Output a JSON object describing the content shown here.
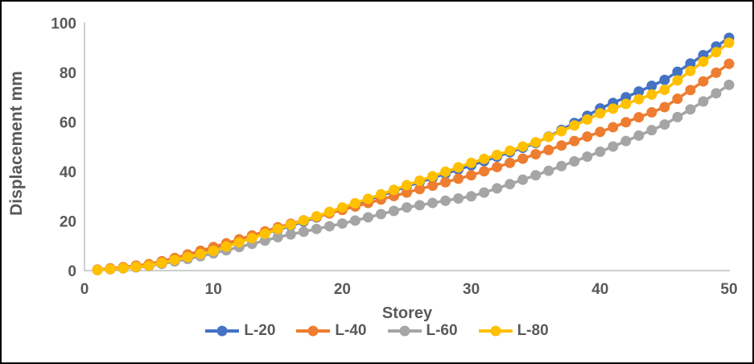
{
  "chart_data": {
    "type": "line",
    "title": "",
    "xlabel": "Storey",
    "ylabel": "Displacement mm",
    "xlim": [
      0,
      50
    ],
    "ylim": [
      0,
      100
    ],
    "x_ticks": [
      0,
      10,
      20,
      30,
      40,
      50
    ],
    "y_ticks": [
      0,
      20,
      40,
      60,
      80,
      100
    ],
    "grid": false,
    "legend_position": "bottom",
    "axis_color": "#BFBFBF",
    "text_color": "#595959",
    "frame_border_color": "#000000",
    "x": [
      1,
      2,
      3,
      4,
      5,
      6,
      7,
      8,
      9,
      10,
      11,
      12,
      13,
      14,
      15,
      16,
      17,
      18,
      19,
      20,
      21,
      22,
      23,
      24,
      25,
      26,
      27,
      28,
      29,
      30,
      31,
      32,
      33,
      34,
      35,
      36,
      37,
      38,
      39,
      40,
      41,
      42,
      43,
      44,
      45,
      46,
      47,
      48,
      49,
      50
    ],
    "series": [
      {
        "name": "L-20",
        "color": "#4472C4",
        "values": [
          0.3,
          0.7,
          1.2,
          1.7,
          2.3,
          3.5,
          4.8,
          6.1,
          7.5,
          9.0,
          10.4,
          11.9,
          13.4,
          14.9,
          16.5,
          18.1,
          19.8,
          21.5,
          23.2,
          25.0,
          26.7,
          28.5,
          30.3,
          32.1,
          34.0,
          35.7,
          37.4,
          39.1,
          40.8,
          42.5,
          44.2,
          46.0,
          47.8,
          49.6,
          51.5,
          54.1,
          56.8,
          59.6,
          62.5,
          65.5,
          67.7,
          70.0,
          72.3,
          74.6,
          77.0,
          80.3,
          83.6,
          87.0,
          90.5,
          94.0
        ]
      },
      {
        "name": "L-40",
        "color": "#ED7D31",
        "values": [
          0.4,
          0.9,
          1.4,
          2.0,
          2.6,
          3.8,
          5.1,
          6.5,
          8.0,
          9.5,
          11.0,
          12.6,
          14.2,
          15.8,
          17.5,
          18.9,
          20.3,
          21.7,
          23.1,
          24.5,
          25.9,
          27.3,
          28.7,
          30.1,
          31.5,
          32.9,
          34.3,
          35.7,
          37.1,
          38.5,
          40.1,
          41.8,
          43.5,
          45.2,
          47.0,
          48.7,
          50.5,
          52.3,
          54.1,
          56.0,
          57.9,
          59.9,
          61.9,
          63.9,
          66.0,
          69.4,
          72.9,
          76.4,
          79.9,
          83.5
        ]
      },
      {
        "name": "L-60",
        "color": "#A5A5A5",
        "values": [
          0.2,
          0.5,
          0.9,
          1.3,
          1.8,
          2.7,
          3.7,
          4.7,
          5.8,
          7.0,
          8.2,
          9.5,
          10.8,
          12.1,
          13.5,
          14.6,
          15.7,
          16.8,
          17.9,
          19.0,
          20.2,
          21.5,
          22.8,
          24.1,
          25.5,
          26.4,
          27.3,
          28.2,
          29.1,
          30.0,
          31.5,
          33.2,
          34.9,
          36.7,
          38.5,
          40.3,
          42.2,
          44.1,
          46.0,
          48.0,
          50.1,
          52.3,
          54.5,
          56.7,
          59.0,
          62.0,
          65.1,
          68.3,
          71.6,
          75.0
        ]
      },
      {
        "name": "L-80",
        "color": "#FFC000",
        "values": [
          0.2,
          0.6,
          1.0,
          1.5,
          2.0,
          3.1,
          4.3,
          5.5,
          6.7,
          8.0,
          9.7,
          11.4,
          13.1,
          14.9,
          16.8,
          18.5,
          20.2,
          21.9,
          23.7,
          25.5,
          27.2,
          29.0,
          30.8,
          32.6,
          34.5,
          36.3,
          38.1,
          39.9,
          41.7,
          43.5,
          45.1,
          46.7,
          48.4,
          50.1,
          51.8,
          54.0,
          56.3,
          58.6,
          61.0,
          63.5,
          65.4,
          67.3,
          69.2,
          71.1,
          73.0,
          76.8,
          80.6,
          84.4,
          88.2,
          92.0
        ]
      }
    ]
  }
}
